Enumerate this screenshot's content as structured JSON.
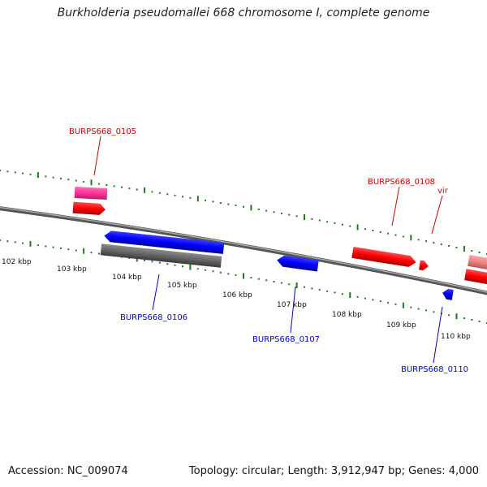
{
  "title": "Burkholderia pseudomallei 668 chromosome I, complete genome",
  "footer": {
    "accession": "Accession: NC_009074",
    "summary": "Topology: circular; Length: 3,912,947 bp; Genes: 4,000"
  },
  "colors": {
    "backbone": "#7a7a7a",
    "tick_green": "#1f7a1f",
    "red": "#ff0000",
    "blue": "#0000ff",
    "gray": "#666666",
    "pink": "#ff3399",
    "salmon": "#f08080",
    "label_red": "#cc0000",
    "label_blue": "#0000cc"
  },
  "kbp_labels": [
    "102 kbp",
    "103 kbp",
    "104 kbp",
    "105 kbp",
    "106 kbp",
    "107 kbp",
    "108 kbp",
    "109 kbp",
    "110 kbp"
  ],
  "gene_labels": [
    {
      "text": "BURPS668_0105",
      "color": "#cc0000"
    },
    {
      "text": "BURPS668_0106",
      "color": "#0000cc"
    },
    {
      "text": "BURPS668_0107",
      "color": "#0000cc"
    },
    {
      "text": "BURPS668_0108",
      "color": "#cc0000"
    },
    {
      "text": "vir",
      "color": "#cc0000"
    },
    {
      "text": "BURPS668_0110",
      "color": "#0000cc"
    }
  ],
  "features": [
    {
      "name": "BURPS668_0105",
      "strand": "+",
      "color": "#ff0000"
    },
    {
      "name": "pink-feature",
      "strand": "+",
      "color": "#ff3399"
    },
    {
      "name": "BURPS668_0106",
      "strand": "-",
      "color": "#0000ff"
    },
    {
      "name": "gray-feature",
      "strand": "-",
      "color": "#666666"
    },
    {
      "name": "BURPS668_0107",
      "strand": "-",
      "color": "#0000ff"
    },
    {
      "name": "BURPS668_0108",
      "strand": "+",
      "color": "#ff0000"
    },
    {
      "name": "vir",
      "strand": "+",
      "color": "#ff0000"
    },
    {
      "name": "BURPS668_0110",
      "strand": "-",
      "color": "#0000ff"
    },
    {
      "name": "salmon-feature",
      "strand": "+",
      "color": "#f08080"
    },
    {
      "name": "edge-red-feature",
      "strand": "+",
      "color": "#ff0000"
    }
  ]
}
